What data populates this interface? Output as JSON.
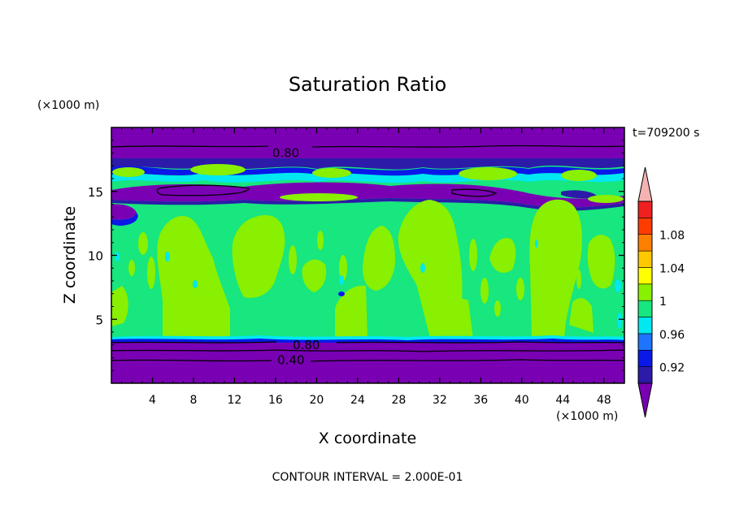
{
  "chart_data": {
    "type": "heatmap",
    "title": "Saturation Ratio",
    "xlabel": "X coordinate",
    "ylabel": "Z coordinate",
    "x_unit": "(×1000 m)",
    "y_unit": "(×1000 m)",
    "time_label": "t=709200 s",
    "footer": "CONTOUR INTERVAL = 2.000E-01",
    "xlim": [
      0,
      50
    ],
    "ylim": [
      0,
      20
    ],
    "x_ticks": [
      4,
      8,
      12,
      16,
      20,
      24,
      28,
      32,
      36,
      40,
      44,
      48
    ],
    "y_ticks": [
      5,
      10,
      15
    ],
    "contour_labels": [
      {
        "text": "0.80",
        "x": 17.0,
        "y": 18.0
      },
      {
        "text": "0.80",
        "x": 19.0,
        "y": 3.0
      },
      {
        "text": "0.40",
        "x": 17.5,
        "y": 1.8
      }
    ],
    "colorbar": {
      "levels": [
        "0.92",
        "0.96",
        "1",
        "1.04",
        "1.08"
      ],
      "colors": [
        "#7a00b4",
        "#2c1aa8",
        "#0a18e8",
        "#1e74ff",
        "#00e8f0",
        "#18e67e",
        "#88f000",
        "#ffff00",
        "#ffc800",
        "#ff8000",
        "#ff3c00",
        "#f02020",
        "#f5b2b2"
      ]
    },
    "regions": [
      {
        "name": "upper-dry-layer",
        "z_range": [
          17.7,
          20
        ],
        "value_below": 0.8
      },
      {
        "name": "moist-band-16km",
        "z_range": [
          15.8,
          17.2
        ],
        "value_approx": 0.98
      },
      {
        "name": "dry-band-15km",
        "z_range": [
          14.2,
          15.6
        ],
        "value_approx": 0.9
      },
      {
        "name": "mixed-layer",
        "z_range": [
          3.5,
          14
        ],
        "value_approx": 1.0
      },
      {
        "name": "lower-dry-layer",
        "z_range": [
          0,
          3.3
        ],
        "value_approx": 0.4
      }
    ]
  }
}
